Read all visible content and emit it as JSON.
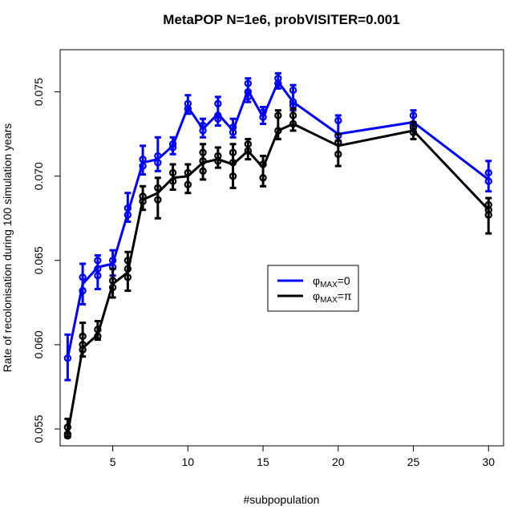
{
  "chart_data": {
    "type": "line",
    "title": "MetaPOP N=1e6, probVISITER=0.001",
    "xlabel": "#subpopulation",
    "ylabel": "Rate of recolonisation during 100 simulation years",
    "xlim": [
      1.5,
      31
    ],
    "ylim": [
      0.054,
      0.0775
    ],
    "x_ticks": [
      5,
      10,
      15,
      20,
      25,
      30
    ],
    "y_ticks": [
      0.055,
      0.06,
      0.065,
      0.07,
      0.075
    ],
    "grid": false,
    "legend_position": "center-right",
    "legend": [
      {
        "prefix": "φ",
        "sub": "MAX",
        "suffix": "=0",
        "color": "#0000ff"
      },
      {
        "prefix": "φ",
        "sub": "MAX",
        "suffix": "=π",
        "color": "#000000"
      }
    ],
    "series": [
      {
        "color": "#0000ff",
        "x": [
          2,
          3,
          4,
          5,
          6,
          7,
          8,
          9,
          10,
          11,
          12,
          13,
          14,
          15,
          16,
          17,
          20,
          25,
          30
        ],
        "values": [
          0.0592,
          0.0636,
          0.0646,
          0.0648,
          0.0678,
          0.0708,
          0.071,
          0.0718,
          0.0741,
          0.0728,
          0.0737,
          0.0727,
          0.0751,
          0.0735,
          0.0756,
          0.0744,
          0.0725,
          0.0732,
          0.0698
        ],
        "points": [
          [
            2,
            0.0592
          ],
          [
            3,
            0.064
          ],
          [
            3,
            0.0632
          ],
          [
            4,
            0.065
          ],
          [
            4,
            0.0645
          ],
          [
            4,
            0.0641
          ],
          [
            5,
            0.065
          ],
          [
            5,
            0.0646
          ],
          [
            6,
            0.0681
          ],
          [
            6,
            0.0677
          ],
          [
            7,
            0.071
          ],
          [
            7,
            0.0706
          ],
          [
            8,
            0.0712
          ],
          [
            8,
            0.0708
          ],
          [
            9,
            0.0719
          ],
          [
            9,
            0.0717
          ],
          [
            10,
            0.0743
          ],
          [
            10,
            0.074
          ],
          [
            11,
            0.073
          ],
          [
            11,
            0.0727
          ],
          [
            12,
            0.0743
          ],
          [
            12,
            0.0736
          ],
          [
            12,
            0.0734
          ],
          [
            13,
            0.0729
          ],
          [
            13,
            0.0726
          ],
          [
            14,
            0.0755
          ],
          [
            14,
            0.075
          ],
          [
            14,
            0.0747
          ],
          [
            15,
            0.0738
          ],
          [
            15,
            0.0735
          ],
          [
            16,
            0.0758
          ],
          [
            16,
            0.0755
          ],
          [
            17,
            0.0751
          ],
          [
            17,
            0.0744
          ],
          [
            17,
            0.0742
          ],
          [
            20,
            0.0733
          ],
          [
            20,
            0.0724
          ],
          [
            25,
            0.0736
          ],
          [
            25,
            0.0731
          ],
          [
            30,
            0.0702
          ],
          [
            30,
            0.0697
          ]
        ],
        "error_bars": [
          [
            2,
            0.0579,
            0.0606
          ],
          [
            3,
            0.0624,
            0.0648
          ],
          [
            4,
            0.0633,
            0.0653
          ],
          [
            5,
            0.0641,
            0.0656
          ],
          [
            6,
            0.0673,
            0.069
          ],
          [
            7,
            0.0701,
            0.0718
          ],
          [
            8,
            0.0703,
            0.0723
          ],
          [
            9,
            0.0713,
            0.0723
          ],
          [
            10,
            0.0737,
            0.0748
          ],
          [
            11,
            0.0723,
            0.0734
          ],
          [
            12,
            0.073,
            0.0747
          ],
          [
            13,
            0.0723,
            0.0734
          ],
          [
            14,
            0.0744,
            0.0758
          ],
          [
            15,
            0.0731,
            0.0741
          ],
          [
            16,
            0.0752,
            0.0761
          ],
          [
            17,
            0.0739,
            0.0754
          ],
          [
            20,
            0.0721,
            0.0736
          ],
          [
            25,
            0.0728,
            0.0739
          ],
          [
            30,
            0.0691,
            0.0709
          ]
        ]
      },
      {
        "color": "#000000",
        "x": [
          2,
          3,
          4,
          5,
          6,
          7,
          8,
          9,
          10,
          11,
          12,
          13,
          14,
          15,
          16,
          17,
          20,
          25,
          30
        ],
        "values": [
          0.0547,
          0.0598,
          0.0606,
          0.0636,
          0.0643,
          0.0686,
          0.069,
          0.0699,
          0.07,
          0.0708,
          0.071,
          0.0707,
          0.0715,
          0.0705,
          0.0727,
          0.0731,
          0.0718,
          0.0727,
          0.068
        ],
        "points": [
          [
            2,
            0.0551
          ],
          [
            2,
            0.0547
          ],
          [
            2,
            0.0546
          ],
          [
            3,
            0.0605
          ],
          [
            3,
            0.06
          ],
          [
            3,
            0.0597
          ],
          [
            4,
            0.0609
          ],
          [
            4,
            0.0605
          ],
          [
            5,
            0.0638
          ],
          [
            5,
            0.0634
          ],
          [
            6,
            0.065
          ],
          [
            6,
            0.0645
          ],
          [
            6,
            0.064
          ],
          [
            7,
            0.0688
          ],
          [
            7,
            0.0685
          ],
          [
            8,
            0.0693
          ],
          [
            8,
            0.0686
          ],
          [
            9,
            0.0702
          ],
          [
            9,
            0.0697
          ],
          [
            10,
            0.0702
          ],
          [
            10,
            0.0695
          ],
          [
            11,
            0.0714
          ],
          [
            11,
            0.0709
          ],
          [
            11,
            0.0703
          ],
          [
            12,
            0.0712
          ],
          [
            12,
            0.0709
          ],
          [
            13,
            0.0714
          ],
          [
            13,
            0.0708
          ],
          [
            13,
            0.07
          ],
          [
            14,
            0.0719
          ],
          [
            14,
            0.0715
          ],
          [
            15,
            0.0707
          ],
          [
            15,
            0.0699
          ],
          [
            16,
            0.0736
          ],
          [
            16,
            0.0727
          ],
          [
            17,
            0.0736
          ],
          [
            17,
            0.0731
          ],
          [
            20,
            0.072
          ],
          [
            20,
            0.0713
          ],
          [
            25,
            0.0729
          ],
          [
            25,
            0.0726
          ],
          [
            30,
            0.0683
          ],
          [
            30,
            0.068
          ],
          [
            30,
            0.0677
          ]
        ],
        "error_bars": [
          [
            2,
            0.0545,
            0.0556
          ],
          [
            3,
            0.0593,
            0.0613
          ],
          [
            4,
            0.0603,
            0.0614
          ],
          [
            5,
            0.0628,
            0.0645
          ],
          [
            6,
            0.0632,
            0.0655
          ],
          [
            7,
            0.068,
            0.0694
          ],
          [
            8,
            0.0675,
            0.0699
          ],
          [
            9,
            0.0692,
            0.0707
          ],
          [
            10,
            0.069,
            0.0707
          ],
          [
            11,
            0.0698,
            0.0719
          ],
          [
            12,
            0.0705,
            0.0717
          ],
          [
            13,
            0.0693,
            0.0719
          ],
          [
            14,
            0.071,
            0.0722
          ],
          [
            15,
            0.0694,
            0.0712
          ],
          [
            16,
            0.0722,
            0.0739
          ],
          [
            17,
            0.0727,
            0.074
          ],
          [
            20,
            0.0706,
            0.0725
          ],
          [
            25,
            0.0722,
            0.0732
          ],
          [
            30,
            0.0666,
            0.0687
          ]
        ]
      }
    ]
  }
}
